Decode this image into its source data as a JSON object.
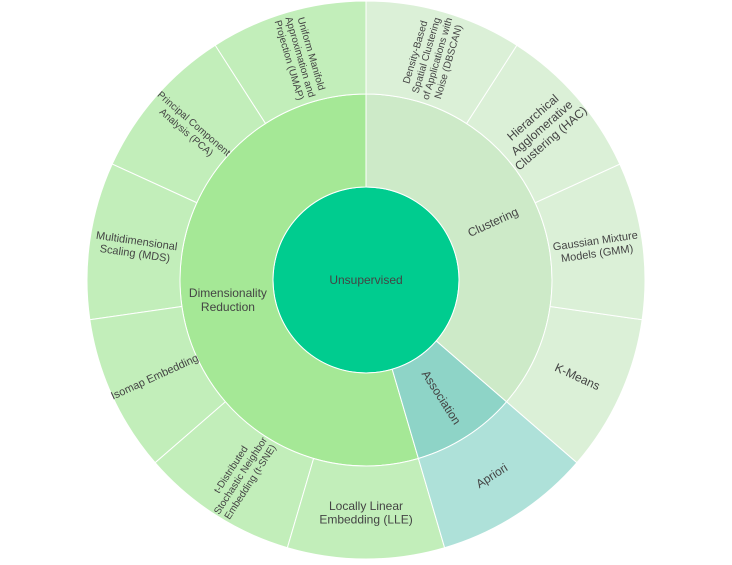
{
  "sunburst": {
    "root": {
      "label": "Unsupervised",
      "color": "#00CC8F"
    },
    "level1": [
      {
        "id": "dim",
        "label": [
          "Dimensionality",
          "Reduction"
        ],
        "value": 6,
        "color": "#A5E896"
      },
      {
        "id": "assoc",
        "label": [
          "Association"
        ],
        "value": 1,
        "color": "#8ED4C7"
      },
      {
        "id": "clust",
        "label": [
          "Clustering"
        ],
        "value": 4,
        "color": "#CDEAC8"
      }
    ],
    "level2": [
      {
        "parent": "dim",
        "label": [
          "Uniform Manifold",
          "Approximation and",
          "Projection (UMAP)"
        ],
        "color": "#C2EEBA",
        "font": 10
      },
      {
        "parent": "dim",
        "label": [
          "Principal Component",
          "Analysis (PCA)"
        ],
        "color": "#C2EEBA",
        "font": 10
      },
      {
        "parent": "dim",
        "label": [
          "Multidimensional",
          "Scaling (MDS)"
        ],
        "color": "#C2EEBA",
        "font": 11
      },
      {
        "parent": "dim",
        "label": [
          "Isomap Embedding"
        ],
        "color": "#C2EEBA",
        "font": 11
      },
      {
        "parent": "dim",
        "label": [
          "t-Distributed",
          "Stochastic Neighbor",
          "Embedding (t-SNE)"
        ],
        "color": "#C2EEBA",
        "font": 10
      },
      {
        "parent": "dim",
        "label": [
          "Locally Linear",
          "Embedding (LLE)"
        ],
        "color": "#C2EEBA",
        "font": 12
      },
      {
        "parent": "clust",
        "label": [
          "K-Means"
        ],
        "color": "#DBF0D7",
        "font": 12
      },
      {
        "parent": "clust",
        "label": [
          "Gaussian Mixture",
          "Models (GMM)"
        ],
        "color": "#DBF0D7",
        "font": 11
      },
      {
        "parent": "clust",
        "label": [
          "Hierarchical",
          "Agglomerative",
          "Clustering (HAC)"
        ],
        "color": "#DBF0D7",
        "font": 12
      },
      {
        "parent": "clust",
        "label": [
          "Density-Based",
          "Spatial Clustering",
          "of Applications with",
          "Noise (DBSCAN)"
        ],
        "color": "#DBF0D7",
        "font": 10
      },
      {
        "parent": "assoc",
        "label": [
          "Apriori"
        ],
        "color": "#AEE1D9",
        "font": 12
      }
    ]
  }
}
